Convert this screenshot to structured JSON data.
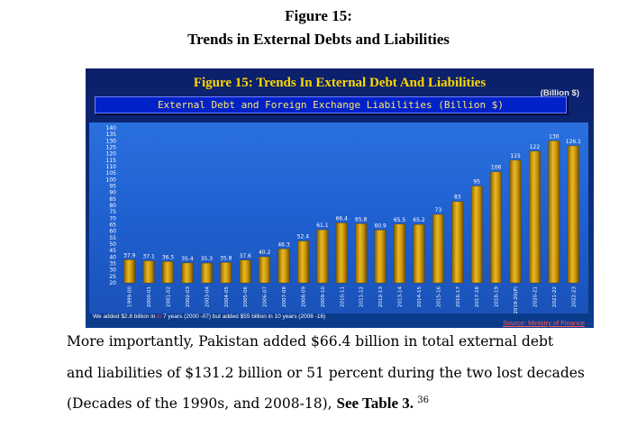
{
  "figure_label": "Figure  15:",
  "figure_caption": "Trends in External Debts and Liabilities",
  "chart_data": {
    "type": "bar",
    "title": "Figure 15: Trends In External Debt And Liabilities",
    "subtitle": "External Debt and Foreign Exchange Liabilities (Billion $)",
    "unit_label": "(Billion $)",
    "categories": [
      "1999-00",
      "2000-01",
      "2001-02",
      "2002-03",
      "2003-04",
      "2004-05",
      "2005-06",
      "2006-07",
      "2007-08",
      "2008-09",
      "2009-10",
      "2010-11",
      "2011-12",
      "2012-13",
      "2013-14",
      "2014-15",
      "2015-16",
      "2016-17",
      "2017-18",
      "2018-19",
      "2019-20(P)",
      "2020-21",
      "2021-22",
      "2022-23"
    ],
    "values": [
      37.9,
      37.1,
      36.5,
      35.4,
      35.3,
      35.8,
      37.6,
      40.2,
      46.3,
      52.4,
      61.1,
      66.4,
      65.8,
      60.9,
      65.5,
      65.2,
      73,
      83,
      95,
      106,
      115,
      122,
      130,
      126.1
    ],
    "data_labels": [
      "37.9",
      "37.1",
      "36.5",
      "35.4",
      "35.3",
      "35.8",
      "37.6",
      "40.2",
      "46.3",
      "52.4",
      "61.1",
      "66.4",
      "65.8",
      "60.9",
      "65.5",
      "65.2",
      "73",
      "83",
      "95",
      "106",
      "115",
      "122",
      "130",
      "126.1"
    ],
    "ylim": [
      20,
      140
    ],
    "yticks": [
      140,
      135,
      130,
      125,
      120,
      115,
      110,
      105,
      100,
      95,
      90,
      85,
      80,
      75,
      70,
      65,
      60,
      55,
      50,
      45,
      40,
      35,
      30,
      25,
      20
    ],
    "grid": false,
    "legend": "none",
    "bar_color": "#d4a010"
  },
  "footnote": {
    "pre": "We added $2.8 billion in ",
    "highlight": "in",
    "post": " 7 years (2000 -07) but added $55 billion in 10 years (2008 -16)"
  },
  "source": "Source: Ministry of Finance",
  "paragraph": {
    "line1": "More importantly, Pakistan added $66.4 billion in total external debt",
    "line2": "and liabilities of $131.2 billion or 51 percent during the two lost decades",
    "line3_text": "(Decades of the 1990s, and 2008-18), ",
    "line3_bold": "See Table  3",
    "line3_end": ". ",
    "line3_sup": "36"
  },
  "colors": {
    "panel_bg": "#0b2a78",
    "plot_bg": "#2266d6",
    "title_yellow": "#ffd800",
    "source_red": "#ff5c5c"
  }
}
